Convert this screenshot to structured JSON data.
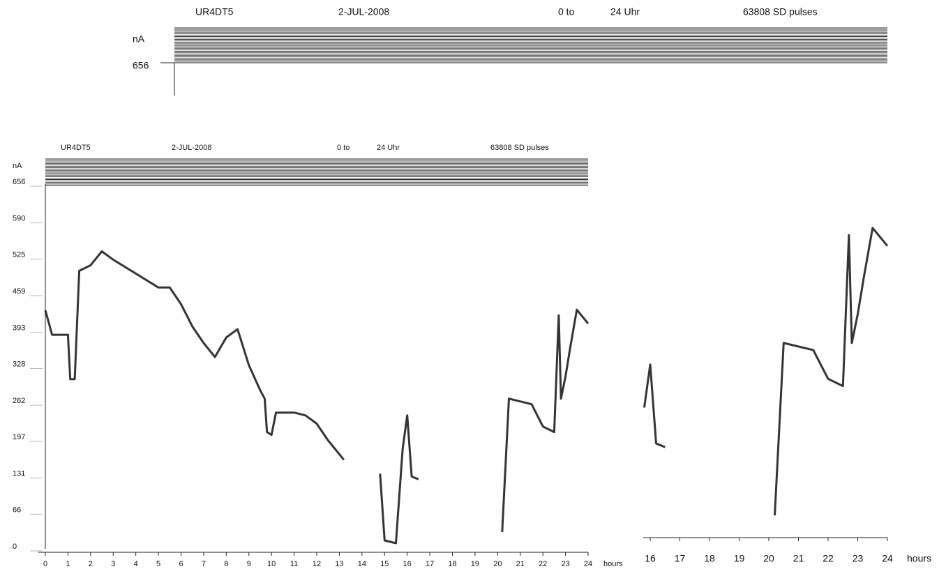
{
  "chart_data": [
    {
      "type": "raster",
      "station": "UR4DT5",
      "date": "2-JUL-2008",
      "from": "0 to",
      "to": "24 Uhr",
      "pulses": "63808 SD pulses",
      "ylabel": "nA",
      "yticks": [
        656
      ]
    },
    {
      "type": "line",
      "station": "UR4DT5",
      "date": "2-JUL-2008",
      "from": "0 to",
      "to": "24 Uhr",
      "pulses": "63808 SD pulses",
      "ylabel": "nA",
      "xlabel": "hours",
      "color": "#111111",
      "x": [
        0.0,
        0.3,
        1.0,
        1.1,
        1.3,
        1.5,
        2.0,
        2.5,
        3.0,
        4.0,
        5.0,
        5.5,
        6.0,
        6.5,
        7.0,
        7.5,
        8.0,
        8.5,
        9.0,
        9.5,
        9.7,
        9.8,
        10.0,
        10.2,
        11.0,
        11.5,
        12.0,
        12.5,
        13.2,
        14.0,
        14.8,
        15.0,
        15.5,
        15.8,
        16.0,
        16.2,
        16.5,
        17.0,
        20.2,
        20.5,
        21.5,
        22.0,
        22.5,
        22.7,
        22.8,
        23.0,
        23.2,
        23.5,
        24.0
      ],
      "values": [
        429,
        385,
        385,
        305,
        305,
        500,
        510,
        535,
        520,
        495,
        470,
        470,
        440,
        400,
        370,
        345,
        380,
        395,
        330,
        285,
        270,
        210,
        205,
        245,
        245,
        240,
        225,
        195,
        160,
        null,
        135,
        15,
        10,
        180,
        240,
        130,
        125,
        null,
        30,
        270,
        260,
        220,
        210,
        420,
        270,
        310,
        360,
        430,
        405
      ],
      "xlim": [
        0,
        24
      ],
      "xticks": [
        0,
        1,
        2,
        3,
        4,
        5,
        6,
        7,
        8,
        9,
        10,
        11,
        12,
        13,
        14,
        15,
        16,
        17,
        18,
        19,
        20,
        21,
        22,
        23,
        24
      ],
      "ylim": [
        0,
        656
      ],
      "yticks": [
        0,
        66,
        131,
        197,
        262,
        328,
        393,
        459,
        525,
        590,
        656
      ]
    },
    {
      "type": "line",
      "xlabel": "hours",
      "color": "#111111",
      "x": [
        15.8,
        16.0,
        16.2,
        16.5,
        17.0,
        20.2,
        20.5,
        21.5,
        22.0,
        22.5,
        22.7,
        22.8,
        23.0,
        23.2,
        23.5,
        24.0
      ],
      "values": [
        180,
        240,
        130,
        125,
        null,
        30,
        270,
        260,
        220,
        210,
        420,
        270,
        310,
        360,
        430,
        405
      ],
      "xlim": [
        16,
        24
      ],
      "xticks": [
        16,
        17,
        18,
        19,
        20,
        21,
        22,
        23,
        24
      ],
      "ylim": [
        0,
        656
      ]
    }
  ]
}
